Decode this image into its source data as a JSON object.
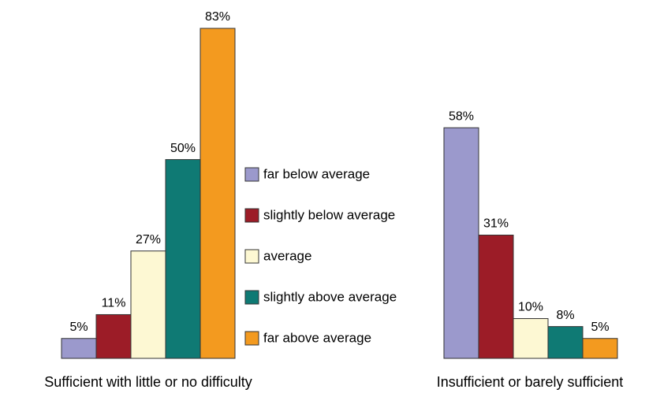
{
  "chart_data": {
    "type": "bar",
    "categories": [
      "Sufficient with little or no difficulty",
      "Insufficient or barely sufficient"
    ],
    "series": [
      {
        "name": "far below average",
        "color": "#9b99cc",
        "values": [
          5,
          58
        ],
        "value_labels": [
          "5%",
          "58%"
        ]
      },
      {
        "name": "slightly below average",
        "color": "#9c1c27",
        "values": [
          11,
          31
        ],
        "value_labels": [
          "11%",
          "31%"
        ]
      },
      {
        "name": "average",
        "color": "#fdf8d3",
        "values": [
          27,
          10
        ],
        "value_labels": [
          "27%",
          "10%"
        ]
      },
      {
        "name": "slightly above average",
        "color": "#0f7a74",
        "values": [
          50,
          8
        ],
        "value_labels": [
          "50%",
          "8%"
        ]
      },
      {
        "name": "far above average",
        "color": "#f39a1f",
        "values": [
          83,
          5
        ],
        "value_labels": [
          "83%",
          "5%"
        ]
      }
    ]
  }
}
